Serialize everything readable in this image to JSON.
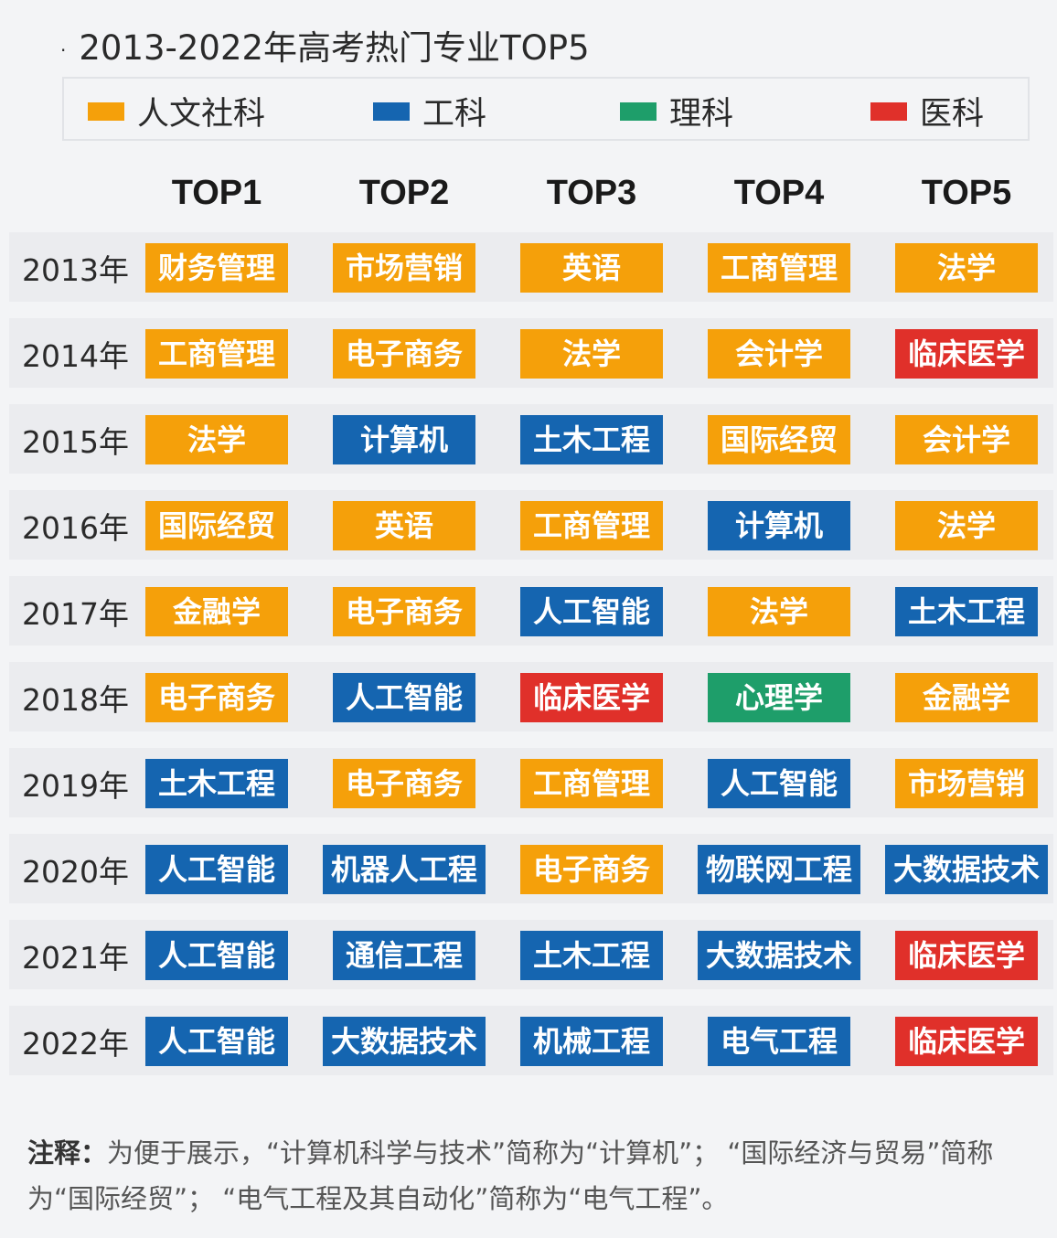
{
  "title": "2013-2022年高考热门专业TOP5",
  "legend": [
    {
      "key": "h",
      "label": "人文社科",
      "color": "#f5a00a"
    },
    {
      "key": "e",
      "label": "工科",
      "color": "#1565b0"
    },
    {
      "key": "s",
      "label": "理科",
      "color": "#1e9e6a"
    },
    {
      "key": "m",
      "label": "医科",
      "color": "#e0302a"
    }
  ],
  "headers": [
    "TOP1",
    "TOP2",
    "TOP3",
    "TOP4",
    "TOP5"
  ],
  "rows": [
    {
      "year": "2013年",
      "majors": [
        {
          "name": "财务管理",
          "cat": "h"
        },
        {
          "name": "市场营销",
          "cat": "h"
        },
        {
          "name": "英语",
          "cat": "h"
        },
        {
          "name": "工商管理",
          "cat": "h"
        },
        {
          "name": "法学",
          "cat": "h"
        }
      ]
    },
    {
      "year": "2014年",
      "majors": [
        {
          "name": "工商管理",
          "cat": "h"
        },
        {
          "name": "电子商务",
          "cat": "h"
        },
        {
          "name": "法学",
          "cat": "h"
        },
        {
          "name": "会计学",
          "cat": "h"
        },
        {
          "name": "临床医学",
          "cat": "m"
        }
      ]
    },
    {
      "year": "2015年",
      "majors": [
        {
          "name": "法学",
          "cat": "h"
        },
        {
          "name": "计算机",
          "cat": "e"
        },
        {
          "name": "土木工程",
          "cat": "e"
        },
        {
          "name": "国际经贸",
          "cat": "h"
        },
        {
          "name": "会计学",
          "cat": "h"
        }
      ]
    },
    {
      "year": "2016年",
      "majors": [
        {
          "name": "国际经贸",
          "cat": "h"
        },
        {
          "name": "英语",
          "cat": "h"
        },
        {
          "name": "工商管理",
          "cat": "h"
        },
        {
          "name": "计算机",
          "cat": "e"
        },
        {
          "name": "法学",
          "cat": "h"
        }
      ]
    },
    {
      "year": "2017年",
      "majors": [
        {
          "name": "金融学",
          "cat": "h"
        },
        {
          "name": "电子商务",
          "cat": "h"
        },
        {
          "name": "人工智能",
          "cat": "e"
        },
        {
          "name": "法学",
          "cat": "h"
        },
        {
          "name": "土木工程",
          "cat": "e"
        }
      ]
    },
    {
      "year": "2018年",
      "majors": [
        {
          "name": "电子商务",
          "cat": "h"
        },
        {
          "name": "人工智能",
          "cat": "e"
        },
        {
          "name": "临床医学",
          "cat": "m"
        },
        {
          "name": "心理学",
          "cat": "s"
        },
        {
          "name": "金融学",
          "cat": "h"
        }
      ]
    },
    {
      "year": "2019年",
      "majors": [
        {
          "name": "土木工程",
          "cat": "e"
        },
        {
          "name": "电子商务",
          "cat": "h"
        },
        {
          "name": "工商管理",
          "cat": "h"
        },
        {
          "name": "人工智能",
          "cat": "e"
        },
        {
          "name": "市场营销",
          "cat": "h"
        }
      ]
    },
    {
      "year": "2020年",
      "majors": [
        {
          "name": "人工智能",
          "cat": "e"
        },
        {
          "name": "机器人工程",
          "cat": "e"
        },
        {
          "name": "电子商务",
          "cat": "h"
        },
        {
          "name": "物联网工程",
          "cat": "e"
        },
        {
          "name": "大数据技术",
          "cat": "e"
        }
      ]
    },
    {
      "year": "2021年",
      "majors": [
        {
          "name": "人工智能",
          "cat": "e"
        },
        {
          "name": "通信工程",
          "cat": "e"
        },
        {
          "name": "土木工程",
          "cat": "e"
        },
        {
          "name": "大数据技术",
          "cat": "e"
        },
        {
          "name": "临床医学",
          "cat": "m"
        }
      ]
    },
    {
      "year": "2022年",
      "majors": [
        {
          "name": "人工智能",
          "cat": "e"
        },
        {
          "name": "大数据技术",
          "cat": "e"
        },
        {
          "name": "机械工程",
          "cat": "e"
        },
        {
          "name": "电气工程",
          "cat": "e"
        },
        {
          "name": "临床医学",
          "cat": "m"
        }
      ]
    }
  ],
  "note": {
    "label": "注释：",
    "text": "为便于展示，“计算机科学与技术”简称为“计算机”； “国际经济与贸易”简称为“国际经贸”； “电气工程及其自动化”简称为“电气工程”。"
  }
}
